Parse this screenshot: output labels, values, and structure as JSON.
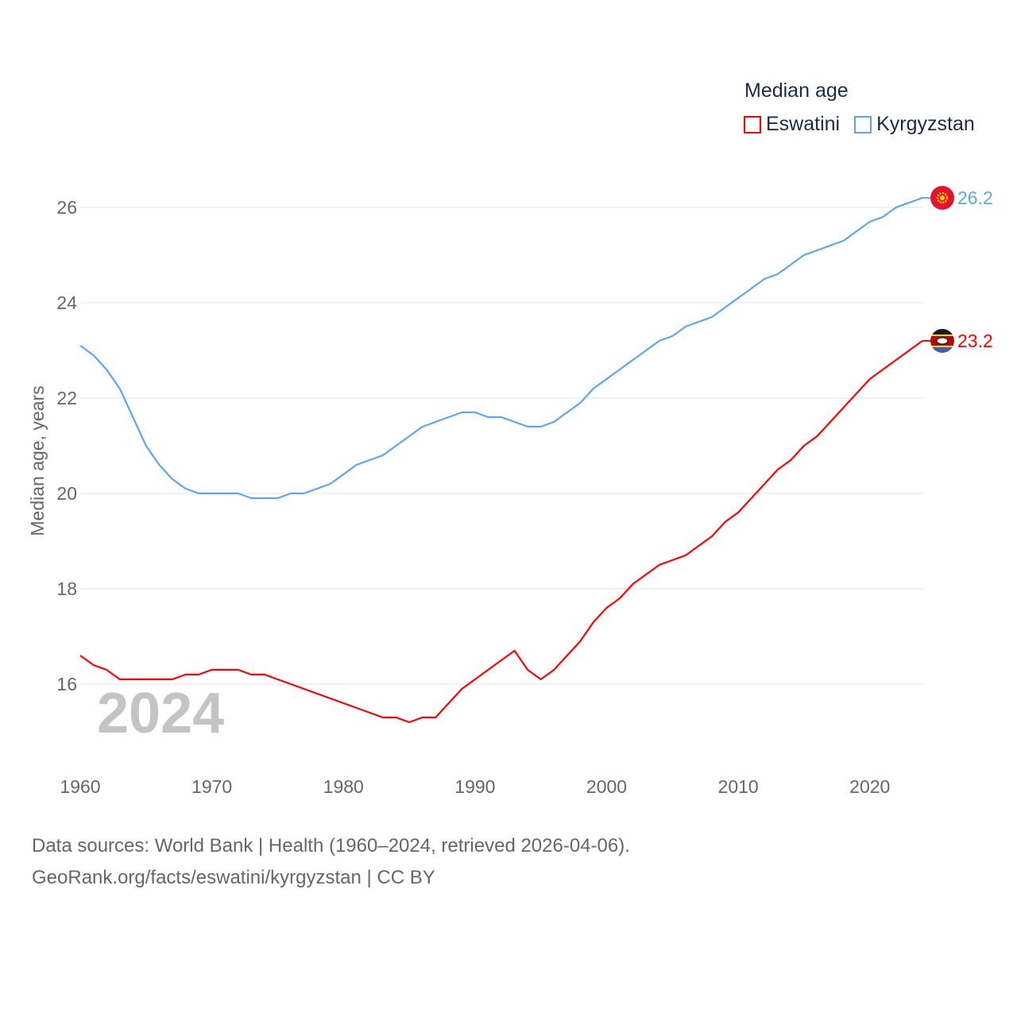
{
  "chart_data": {
    "type": "line",
    "title": "Median age",
    "ylabel": "Median age, years",
    "xlabel": "",
    "xlim": [
      1960,
      2024
    ],
    "ylim": [
      14.8,
      27
    ],
    "x_ticks": [
      1960,
      1970,
      1980,
      1990,
      2000,
      2010,
      2020
    ],
    "y_ticks": [
      16,
      18,
      20,
      22,
      24,
      26
    ],
    "grid": true,
    "legend_position": "top-right",
    "year_label": "2024",
    "x": [
      1960,
      1961,
      1962,
      1963,
      1964,
      1965,
      1966,
      1967,
      1968,
      1969,
      1970,
      1971,
      1972,
      1973,
      1974,
      1975,
      1976,
      1977,
      1978,
      1979,
      1980,
      1981,
      1982,
      1983,
      1984,
      1985,
      1986,
      1987,
      1988,
      1989,
      1990,
      1991,
      1992,
      1993,
      1994,
      1995,
      1996,
      1997,
      1998,
      1999,
      2000,
      2001,
      2002,
      2003,
      2004,
      2005,
      2006,
      2007,
      2008,
      2009,
      2010,
      2011,
      2012,
      2013,
      2014,
      2015,
      2016,
      2017,
      2018,
      2019,
      2020,
      2021,
      2022,
      2023,
      2024
    ],
    "series": [
      {
        "name": "Eswatini",
        "color": "#ff0000",
        "end_label": "23.2",
        "values": [
          16.6,
          16.4,
          16.3,
          16.1,
          16.1,
          16.1,
          16.1,
          16.1,
          16.2,
          16.2,
          16.3,
          16.3,
          16.3,
          16.2,
          16.2,
          16.1,
          16.0,
          15.9,
          15.8,
          15.7,
          15.6,
          15.5,
          15.4,
          15.3,
          15.3,
          15.2,
          15.3,
          15.3,
          15.6,
          15.9,
          16.1,
          16.3,
          16.5,
          16.7,
          16.3,
          16.1,
          16.3,
          16.6,
          16.9,
          17.3,
          17.6,
          17.8,
          18.1,
          18.3,
          18.5,
          18.6,
          18.7,
          18.9,
          19.1,
          19.4,
          19.6,
          19.9,
          20.2,
          20.5,
          20.7,
          21.0,
          21.2,
          21.5,
          21.8,
          22.1,
          22.4,
          22.6,
          22.8,
          23.0,
          23.2
        ]
      },
      {
        "name": "Kyrgyzstan",
        "color": "#5ea6ee",
        "end_label": "26.2",
        "values": [
          23.1,
          22.9,
          22.6,
          22.2,
          21.6,
          21.0,
          20.6,
          20.3,
          20.1,
          20.0,
          20.0,
          20.0,
          20.0,
          19.9,
          19.9,
          19.9,
          20.0,
          20.0,
          20.1,
          20.2,
          20.4,
          20.6,
          20.7,
          20.8,
          21.0,
          21.2,
          21.4,
          21.5,
          21.6,
          21.7,
          21.7,
          21.6,
          21.6,
          21.5,
          21.4,
          21.4,
          21.5,
          21.7,
          21.9,
          22.2,
          22.4,
          22.6,
          22.8,
          23.0,
          23.2,
          23.3,
          23.5,
          23.6,
          23.7,
          23.9,
          24.1,
          24.3,
          24.5,
          24.6,
          24.8,
          25.0,
          25.1,
          25.2,
          25.3,
          25.5,
          25.7,
          25.8,
          26.0,
          26.1,
          26.2
        ]
      }
    ]
  },
  "legend": {
    "title": "Median age",
    "items": [
      "Eswatini",
      "Kyrgyzstan"
    ]
  },
  "source": {
    "line1": "Data sources: World Bank | Health (1960–2024, retrieved 2026-04-06).",
    "line2": "GeoRank.org/facts/eswatini/kyrgyzstan | CC BY"
  }
}
